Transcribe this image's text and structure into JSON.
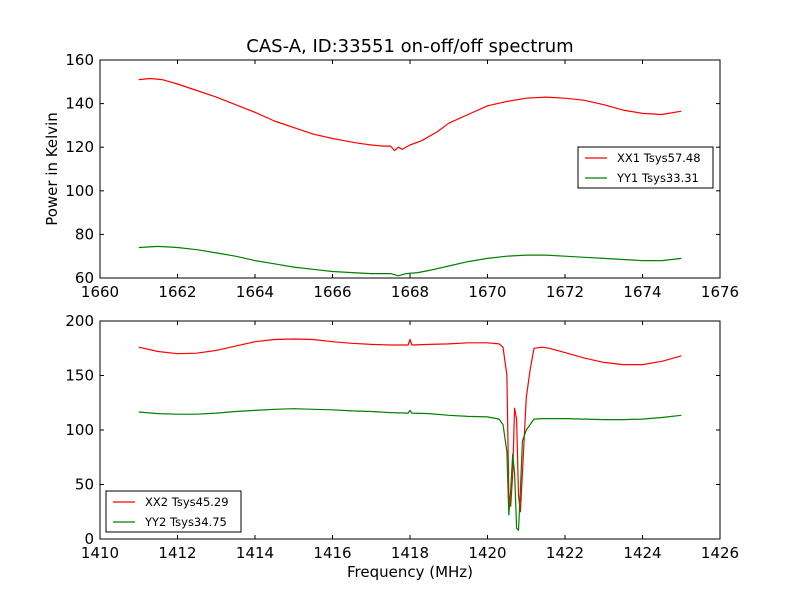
{
  "chart_data": [
    {
      "type": "line",
      "title": "CAS-A, ID:33551 on-off/off spectrum",
      "xlabel": "",
      "ylabel": "Power in Kelvin",
      "xlim": [
        1660,
        1676
      ],
      "ylim": [
        60,
        160
      ],
      "xticks": [
        "1660",
        "1662",
        "1664",
        "1666",
        "1668",
        "1670",
        "1672",
        "1674",
        "1676"
      ],
      "yticks": [
        "60",
        "80",
        "100",
        "120",
        "140",
        "160"
      ],
      "legend_position": "center-right",
      "series": [
        {
          "name": "XX1 Tsys57.48",
          "color": "#ff0000",
          "x": [
            1661.0,
            1661.3,
            1661.6,
            1662.0,
            1662.5,
            1663.0,
            1663.5,
            1664.0,
            1664.5,
            1665.0,
            1665.5,
            1666.0,
            1666.3,
            1666.6,
            1667.0,
            1667.3,
            1667.5,
            1667.6,
            1667.7,
            1667.8,
            1668.0,
            1668.3,
            1668.7,
            1669.0,
            1669.5,
            1670.0,
            1670.5,
            1671.0,
            1671.5,
            1672.0,
            1672.5,
            1673.0,
            1673.5,
            1674.0,
            1674.5,
            1675.0
          ],
          "y": [
            151,
            151.5,
            151,
            149,
            146,
            143,
            139.5,
            136,
            132,
            129,
            126,
            124,
            123,
            122,
            121,
            120.5,
            120.5,
            118.5,
            120,
            119,
            121,
            123,
            127,
            131,
            135,
            139,
            141,
            142.5,
            143,
            142.5,
            141.5,
            139.5,
            137,
            135.5,
            135,
            136.5
          ]
        },
        {
          "name": "YY1 Tsys33.31",
          "color": "#008000",
          "x": [
            1661.0,
            1661.5,
            1662.0,
            1662.5,
            1663.0,
            1663.5,
            1664.0,
            1664.5,
            1665.0,
            1665.5,
            1666.0,
            1666.5,
            1667.0,
            1667.5,
            1667.7,
            1667.9,
            1668.2,
            1668.5,
            1669.0,
            1669.5,
            1670.0,
            1670.5,
            1671.0,
            1671.5,
            1672.0,
            1672.5,
            1673.0,
            1673.5,
            1674.0,
            1674.5,
            1675.0
          ],
          "y": [
            74,
            74.5,
            74,
            73,
            71.5,
            70,
            68,
            66.5,
            65,
            64,
            63,
            62.5,
            62,
            62,
            61,
            62,
            62.5,
            63.5,
            65.5,
            67.5,
            69,
            70,
            70.5,
            70.5,
            70,
            69.5,
            69,
            68.5,
            68,
            68,
            69
          ]
        }
      ]
    },
    {
      "type": "line",
      "title": "",
      "xlabel": "Frequency (MHz)",
      "ylabel": "",
      "xlim": [
        1410,
        1426
      ],
      "ylim": [
        0,
        200
      ],
      "xticks": [
        "1410",
        "1412",
        "1414",
        "1416",
        "1418",
        "1420",
        "1422",
        "1424",
        "1426"
      ],
      "yticks": [
        "0",
        "50",
        "100",
        "150",
        "200"
      ],
      "legend_position": "lower-left",
      "series": [
        {
          "name": "XX2 Tsys45.29",
          "color": "#ff0000",
          "x": [
            1411.0,
            1411.5,
            1412.0,
            1412.5,
            1413.0,
            1413.5,
            1414.0,
            1414.5,
            1415.0,
            1415.5,
            1416.0,
            1416.5,
            1417.0,
            1417.5,
            1417.95,
            1418.0,
            1418.05,
            1418.5,
            1419.0,
            1419.5,
            1420.0,
            1420.3,
            1420.4,
            1420.5,
            1420.55,
            1420.6,
            1420.65,
            1420.7,
            1420.75,
            1420.8,
            1420.85,
            1420.9,
            1421.0,
            1421.1,
            1421.2,
            1421.4,
            1421.6,
            1422.0,
            1422.5,
            1423.0,
            1423.5,
            1424.0,
            1424.5,
            1425.0
          ],
          "y": [
            176,
            172,
            170,
            170.5,
            173,
            177,
            181,
            183,
            183.5,
            183,
            181,
            179.5,
            178.5,
            178,
            178,
            183,
            178,
            178.5,
            179,
            180,
            180,
            179,
            176,
            150,
            40,
            30,
            60,
            120,
            110,
            40,
            25,
            60,
            130,
            155,
            175,
            176,
            175,
            171,
            166,
            162,
            160,
            160,
            163,
            168
          ]
        },
        {
          "name": "YY2 Tsys34.75",
          "color": "#008000",
          "x": [
            1411.0,
            1411.5,
            1412.0,
            1412.5,
            1413.0,
            1413.5,
            1414.0,
            1414.5,
            1415.0,
            1415.5,
            1416.0,
            1416.5,
            1417.0,
            1417.5,
            1417.95,
            1418.0,
            1418.05,
            1418.5,
            1419.0,
            1419.5,
            1420.0,
            1420.3,
            1420.4,
            1420.5,
            1420.55,
            1420.6,
            1420.65,
            1420.7,
            1420.75,
            1420.8,
            1420.85,
            1420.9,
            1421.0,
            1421.1,
            1421.2,
            1421.4,
            1421.6,
            1422.0,
            1422.5,
            1423.0,
            1423.5,
            1424.0,
            1424.5,
            1425.0
          ],
          "y": [
            116.5,
            115,
            114.5,
            114.5,
            115.5,
            117,
            118,
            119,
            119.5,
            119,
            118.5,
            117.5,
            117,
            116,
            115.5,
            118,
            115.5,
            115,
            113.5,
            112.5,
            112,
            110,
            105,
            80,
            22,
            45,
            78,
            60,
            10,
            8,
            45,
            90,
            100,
            105,
            110,
            110.5,
            110.5,
            110.5,
            110,
            109.5,
            109.5,
            110,
            111.5,
            113.5
          ]
        }
      ]
    }
  ]
}
